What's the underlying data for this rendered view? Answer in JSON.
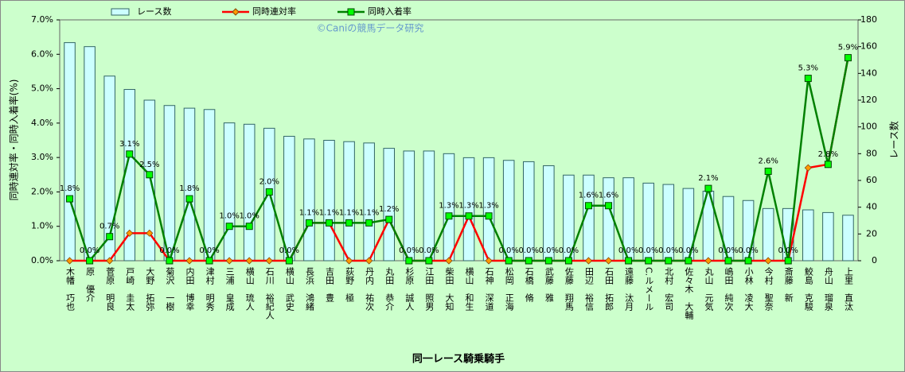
{
  "chart_data": {
    "type": "bar",
    "title": "©Caniの競馬データ研究",
    "ylabel": "同時連対率・同時入着率(%)",
    "y2label": "レース数",
    "xlabel": "同一レース騎乗騎手",
    "categories": [
      "木幡　巧也",
      "原　優介",
      "菅原　明良",
      "戸崎　圭太",
      "大野　拓弥",
      "菊沢　一樹",
      "内田　博幸",
      "津村　明秀",
      "三浦　皇成",
      "横山　琉人",
      "石川　裕紀人",
      "横山　武史",
      "長浜　鴻緒",
      "吉田　豊",
      "荻野　極",
      "丹内　祐次",
      "丸田　恭介",
      "杉原　誠人",
      "江田　照男",
      "柴田　大知",
      "横山　和生",
      "石神　深道",
      "松岡　正海",
      "石橋　脩",
      "武藤　雅",
      "佐藤　翔馬",
      "田辺　裕信",
      "石田　拓郎",
      "遠藤　汰月",
      "C.ルメール",
      "北村　宏司",
      "佐々木　大輔",
      "丸山　元気",
      "嶋田　純次",
      "小林　凌大",
      "今村　聖奈",
      "斎藤　新",
      "鮫島　克駿",
      "舟山　瑠泉",
      "上里　直汰"
    ],
    "series": [
      {
        "name": "レース数",
        "type": "bar",
        "axis": "y2",
        "color": "#ccffff",
        "values": [
          163,
          160,
          138,
          128,
          120,
          116,
          114,
          113,
          103,
          102,
          99,
          93,
          91,
          90,
          89,
          88,
          84,
          82,
          82,
          80,
          77,
          77,
          75,
          74,
          71,
          64,
          64,
          62,
          62,
          58,
          57,
          54,
          52,
          48,
          45,
          39,
          39,
          38,
          36,
          34
        ]
      },
      {
        "name": "同時連対率",
        "type": "line",
        "color": "#ff0000",
        "marker_color": "#ff9900",
        "values": [
          0,
          0,
          0,
          0.8,
          0.8,
          0,
          0,
          0,
          0,
          0,
          0,
          0,
          1.1,
          1.1,
          0,
          0,
          1.2,
          0,
          0,
          0,
          1.3,
          0,
          0,
          0,
          0,
          0,
          0,
          0,
          0,
          0,
          0,
          0,
          0,
          0,
          0,
          0,
          0,
          2.7,
          2.8,
          5.9
        ]
      },
      {
        "name": "同時入着率",
        "type": "line",
        "color": "#008000",
        "marker_color": "#00ff00",
        "values": [
          1.8,
          0.0,
          0.7,
          3.1,
          2.5,
          0.0,
          1.8,
          0.0,
          1.0,
          1.0,
          2.0,
          0.0,
          1.1,
          1.1,
          1.1,
          1.1,
          1.2,
          0.0,
          0.0,
          1.3,
          1.3,
          1.3,
          0.0,
          0.0,
          0.0,
          0.0,
          1.6,
          1.6,
          0.0,
          0.0,
          0.0,
          0.0,
          2.1,
          0.0,
          0.0,
          2.6,
          0.0,
          5.3,
          2.8,
          5.9
        ],
        "value_labels": [
          "1.8%",
          "0.0%",
          "0.7%",
          "3.1%",
          "2.5%",
          "0.0%",
          "1.8%",
          "0.0%",
          "1.0%",
          "1.0%",
          "2.0%",
          "0.0%",
          "1.1%",
          "1.1%",
          "1.1%",
          "1.1%",
          "1.2%",
          "0.0%",
          "0.0%",
          "1.3%",
          "1.3%",
          "1.3%",
          "0.0%",
          "0.0%",
          "0.0%",
          "0.0%",
          "1.6%",
          "1.6%",
          "0.0%",
          "0.0%",
          "0.0%",
          "0.0%",
          "2.1%",
          "0.0%",
          "0.0%",
          "2.6%",
          "0.0%",
          "5.3%",
          "2.8%",
          "5.9%"
        ]
      }
    ],
    "ylim": [
      0,
      7
    ],
    "yticks": [
      {
        "value": 0,
        "label": "0.0%"
      },
      {
        "value": 1,
        "label": "1.0%"
      },
      {
        "value": 2,
        "label": "2.0%"
      },
      {
        "value": 3,
        "label": "3.0%"
      },
      {
        "value": 4,
        "label": "4.0%"
      },
      {
        "value": 5,
        "label": "5.0%"
      },
      {
        "value": 6,
        "label": "6.0%"
      },
      {
        "value": 7,
        "label": "7.0%"
      }
    ],
    "y2lim": [
      0,
      180
    ],
    "y2ticks": [
      0,
      20,
      40,
      60,
      80,
      100,
      120,
      140,
      160,
      180
    ],
    "legend": "top"
  }
}
